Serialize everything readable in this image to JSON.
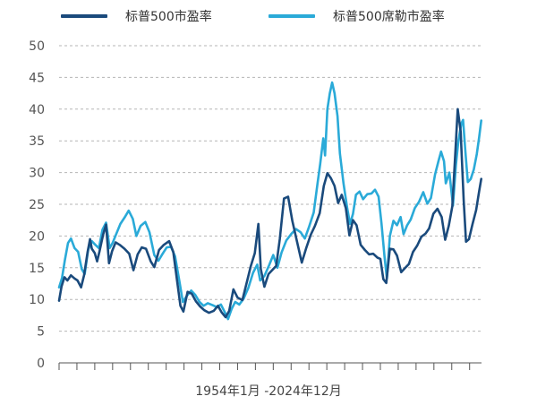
{
  "chart_data": {
    "type": "line",
    "title": "",
    "xlabel": "1954年1月 -2024年12月",
    "ylabel": "",
    "x_range": [
      1954,
      2025
    ],
    "ylim": [
      0,
      50
    ],
    "y_ticks": [
      0,
      5,
      10,
      15,
      20,
      25,
      30,
      35,
      40,
      45,
      50
    ],
    "grid": "horizontal-dashed",
    "legend_position": "top",
    "series": [
      {
        "name": "标普500市盈率",
        "color": "#1a4a7c",
        "points": [
          [
            1954.0,
            9.8
          ],
          [
            1954.4,
            12.0
          ],
          [
            1954.9,
            13.5
          ],
          [
            1955.4,
            13.0
          ],
          [
            1956.0,
            13.8
          ],
          [
            1956.6,
            13.3
          ],
          [
            1957.1,
            13.0
          ],
          [
            1957.7,
            11.9
          ],
          [
            1958.2,
            13.8
          ],
          [
            1958.8,
            17.5
          ],
          [
            1959.2,
            19.5
          ],
          [
            1959.5,
            18.0
          ],
          [
            1960.0,
            17.3
          ],
          [
            1960.4,
            16.0
          ],
          [
            1960.8,
            17.6
          ],
          [
            1961.4,
            20.2
          ],
          [
            1961.9,
            21.8
          ],
          [
            1962.4,
            15.7
          ],
          [
            1962.9,
            17.6
          ],
          [
            1963.5,
            19.0
          ],
          [
            1964.2,
            18.6
          ],
          [
            1965.0,
            18.0
          ],
          [
            1965.8,
            17.2
          ],
          [
            1966.5,
            14.6
          ],
          [
            1967.2,
            17.1
          ],
          [
            1967.9,
            18.2
          ],
          [
            1968.6,
            18.0
          ],
          [
            1969.4,
            16.0
          ],
          [
            1970.0,
            15.1
          ],
          [
            1970.8,
            17.8
          ],
          [
            1971.6,
            18.6
          ],
          [
            1972.5,
            19.2
          ],
          [
            1973.2,
            17.5
          ],
          [
            1973.8,
            13.2
          ],
          [
            1974.4,
            9.0
          ],
          [
            1974.9,
            8.1
          ],
          [
            1975.6,
            11.2
          ],
          [
            1976.3,
            10.9
          ],
          [
            1977.0,
            9.7
          ],
          [
            1977.7,
            8.9
          ],
          [
            1978.4,
            8.3
          ],
          [
            1979.2,
            7.9
          ],
          [
            1980.0,
            8.2
          ],
          [
            1980.7,
            9.0
          ],
          [
            1981.3,
            8.0
          ],
          [
            1982.0,
            7.2
          ],
          [
            1982.6,
            8.2
          ],
          [
            1983.3,
            11.6
          ],
          [
            1984.0,
            10.3
          ],
          [
            1984.8,
            9.9
          ],
          [
            1985.5,
            12.5
          ],
          [
            1986.2,
            15.2
          ],
          [
            1986.9,
            17.3
          ],
          [
            1987.5,
            21.9
          ],
          [
            1987.9,
            14.8
          ],
          [
            1988.5,
            12.0
          ],
          [
            1989.2,
            14.0
          ],
          [
            1989.9,
            14.7
          ],
          [
            1990.5,
            15.3
          ],
          [
            1991.1,
            19.5
          ],
          [
            1991.8,
            25.9
          ],
          [
            1992.5,
            26.2
          ],
          [
            1993.2,
            22.4
          ],
          [
            1994.0,
            19.1
          ],
          [
            1994.8,
            15.8
          ],
          [
            1995.5,
            18.0
          ],
          [
            1996.3,
            20.2
          ],
          [
            1997.0,
            21.6
          ],
          [
            1997.8,
            23.6
          ],
          [
            1998.5,
            27.9
          ],
          [
            1999.1,
            29.9
          ],
          [
            1999.7,
            29.1
          ],
          [
            2000.3,
            27.9
          ],
          [
            2000.9,
            25.2
          ],
          [
            2001.5,
            26.5
          ],
          [
            2002.2,
            24.4
          ],
          [
            2002.8,
            20.1
          ],
          [
            2003.4,
            22.5
          ],
          [
            2004.0,
            21.7
          ],
          [
            2004.7,
            18.6
          ],
          [
            2005.4,
            17.8
          ],
          [
            2006.1,
            17.1
          ],
          [
            2006.8,
            17.2
          ],
          [
            2007.5,
            16.6
          ],
          [
            2008.0,
            16.4
          ],
          [
            2008.5,
            13.2
          ],
          [
            2009.0,
            12.6
          ],
          [
            2009.6,
            18.0
          ],
          [
            2010.2,
            17.9
          ],
          [
            2010.8,
            16.9
          ],
          [
            2011.5,
            14.3
          ],
          [
            2012.1,
            14.9
          ],
          [
            2012.8,
            15.6
          ],
          [
            2013.5,
            17.5
          ],
          [
            2014.2,
            18.5
          ],
          [
            2014.9,
            19.9
          ],
          [
            2015.6,
            20.4
          ],
          [
            2016.2,
            21.2
          ],
          [
            2016.9,
            23.5
          ],
          [
            2017.6,
            24.3
          ],
          [
            2018.3,
            23.0
          ],
          [
            2018.9,
            19.4
          ],
          [
            2019.5,
            21.6
          ],
          [
            2020.1,
            24.7
          ],
          [
            2020.6,
            33.0
          ],
          [
            2021.0,
            40.0
          ],
          [
            2021.5,
            36.5
          ],
          [
            2022.0,
            25.6
          ],
          [
            2022.4,
            19.1
          ],
          [
            2022.9,
            19.5
          ],
          [
            2023.5,
            21.9
          ],
          [
            2024.1,
            24.1
          ],
          [
            2024.6,
            27.0
          ],
          [
            2024.95,
            29.0
          ]
        ]
      },
      {
        "name": "标普500席勒市盈率",
        "color": "#2aaad8",
        "points": [
          [
            1954.0,
            11.9
          ],
          [
            1954.5,
            13.4
          ],
          [
            1955.0,
            16.3
          ],
          [
            1955.5,
            18.9
          ],
          [
            1956.0,
            19.6
          ],
          [
            1956.6,
            18.1
          ],
          [
            1957.2,
            17.5
          ],
          [
            1957.8,
            14.8
          ],
          [
            1958.3,
            14.0
          ],
          [
            1958.9,
            17.9
          ],
          [
            1959.5,
            19.2
          ],
          [
            1960.1,
            18.6
          ],
          [
            1960.7,
            18.1
          ],
          [
            1961.3,
            21.0
          ],
          [
            1961.9,
            22.1
          ],
          [
            1962.5,
            18.1
          ],
          [
            1963.0,
            18.9
          ],
          [
            1963.6,
            20.3
          ],
          [
            1964.3,
            21.9
          ],
          [
            1965.0,
            22.9
          ],
          [
            1965.7,
            24.0
          ],
          [
            1966.4,
            22.7
          ],
          [
            1967.0,
            20.0
          ],
          [
            1967.7,
            21.6
          ],
          [
            1968.5,
            22.2
          ],
          [
            1969.2,
            20.6
          ],
          [
            1970.0,
            17.0
          ],
          [
            1970.7,
            16.1
          ],
          [
            1971.4,
            17.2
          ],
          [
            1972.1,
            18.2
          ],
          [
            1972.8,
            18.3
          ],
          [
            1973.5,
            16.8
          ],
          [
            1974.2,
            13.0
          ],
          [
            1974.8,
            9.6
          ],
          [
            1975.5,
            10.6
          ],
          [
            1976.2,
            11.4
          ],
          [
            1976.9,
            10.7
          ],
          [
            1977.6,
            9.6
          ],
          [
            1978.3,
            9.0
          ],
          [
            1979.0,
            9.4
          ],
          [
            1979.8,
            9.1
          ],
          [
            1980.5,
            8.8
          ],
          [
            1981.2,
            9.2
          ],
          [
            1981.8,
            8.1
          ],
          [
            1982.4,
            6.9
          ],
          [
            1983.0,
            8.5
          ],
          [
            1983.6,
            9.6
          ],
          [
            1984.3,
            9.2
          ],
          [
            1985.0,
            10.1
          ],
          [
            1985.8,
            11.8
          ],
          [
            1986.6,
            14.2
          ],
          [
            1987.3,
            15.5
          ],
          [
            1987.8,
            13.0
          ],
          [
            1988.5,
            13.7
          ],
          [
            1989.3,
            15.4
          ],
          [
            1990.0,
            17.0
          ],
          [
            1990.7,
            15.0
          ],
          [
            1991.4,
            17.4
          ],
          [
            1992.2,
            19.3
          ],
          [
            1993.0,
            20.3
          ],
          [
            1993.8,
            21.1
          ],
          [
            1994.6,
            20.6
          ],
          [
            1995.3,
            19.6
          ],
          [
            1996.0,
            21.4
          ],
          [
            1996.8,
            23.7
          ],
          [
            1997.4,
            28.0
          ],
          [
            1997.9,
            31.4
          ],
          [
            1998.4,
            35.4
          ],
          [
            1998.7,
            32.7
          ],
          [
            1999.1,
            40.0
          ],
          [
            1999.5,
            42.5
          ],
          [
            1999.9,
            44.2
          ],
          [
            2000.3,
            42.5
          ],
          [
            2000.8,
            38.9
          ],
          [
            2001.2,
            33.0
          ],
          [
            2001.8,
            28.3
          ],
          [
            2002.4,
            24.5
          ],
          [
            2002.9,
            21.9
          ],
          [
            2003.4,
            23.5
          ],
          [
            2003.9,
            26.5
          ],
          [
            2004.5,
            27.0
          ],
          [
            2005.1,
            25.8
          ],
          [
            2005.8,
            26.6
          ],
          [
            2006.5,
            26.7
          ],
          [
            2007.1,
            27.3
          ],
          [
            2007.7,
            26.2
          ],
          [
            2008.2,
            21.9
          ],
          [
            2008.7,
            16.8
          ],
          [
            2009.1,
            13.3
          ],
          [
            2009.6,
            20.0
          ],
          [
            2010.2,
            22.4
          ],
          [
            2010.8,
            21.7
          ],
          [
            2011.4,
            23.0
          ],
          [
            2011.9,
            20.3
          ],
          [
            2012.5,
            21.7
          ],
          [
            2013.1,
            22.6
          ],
          [
            2013.8,
            24.4
          ],
          [
            2014.5,
            25.4
          ],
          [
            2015.2,
            26.9
          ],
          [
            2015.9,
            25.1
          ],
          [
            2016.5,
            26.0
          ],
          [
            2017.2,
            29.7
          ],
          [
            2017.8,
            31.9
          ],
          [
            2018.2,
            33.3
          ],
          [
            2018.7,
            31.8
          ],
          [
            2019.0,
            28.3
          ],
          [
            2019.6,
            30.0
          ],
          [
            2020.2,
            24.8
          ],
          [
            2020.7,
            31.2
          ],
          [
            2021.1,
            34.9
          ],
          [
            2021.6,
            37.7
          ],
          [
            2021.9,
            38.3
          ],
          [
            2022.3,
            33.1
          ],
          [
            2022.7,
            28.5
          ],
          [
            2023.2,
            29.0
          ],
          [
            2023.7,
            30.5
          ],
          [
            2024.2,
            32.9
          ],
          [
            2024.6,
            35.5
          ],
          [
            2024.95,
            38.2
          ]
        ]
      }
    ]
  }
}
